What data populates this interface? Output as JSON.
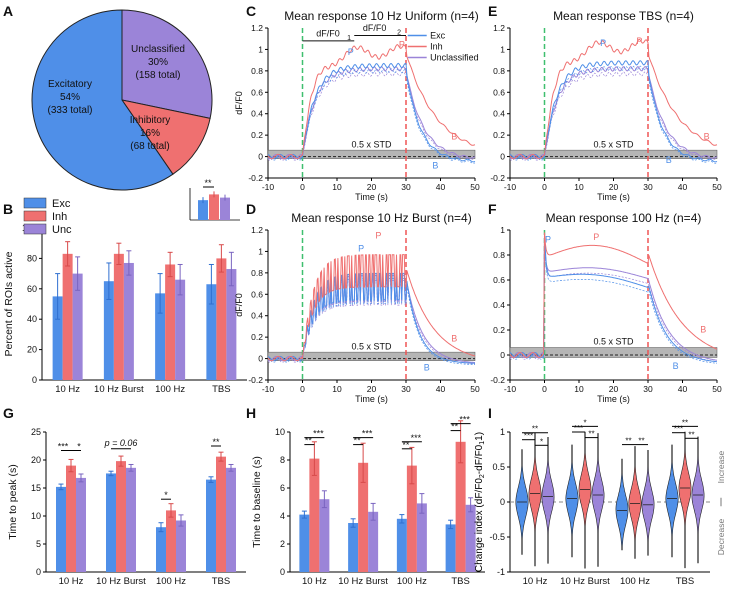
{
  "colors": {
    "exc": "#4f8fe8",
    "inh": "#ef7070",
    "unc": "#9b84d8",
    "exc_dark": "#2f6fd0",
    "inh_dark": "#d84a4a",
    "unc_dark": "#7a64c0",
    "green": "#3fbf6f",
    "red": "#ef5555",
    "grey": "#9a9a9a"
  },
  "legend": [
    "Exc",
    "Inh",
    "Unc"
  ],
  "chart_data": [
    {
      "panel": "A",
      "type": "pie",
      "slices": [
        {
          "name": "Excitatory",
          "pct": "54%",
          "total": "(333 total)",
          "value": 333
        },
        {
          "name": "Unclassified",
          "pct": "30%",
          "total": "(158 total)",
          "value": 158
        },
        {
          "name": "Inhibitory",
          "pct": "16%",
          "total": "(68 total)",
          "value": 68
        }
      ]
    },
    {
      "panel": "B",
      "type": "bar",
      "ylabel": "Percent of ROIs active",
      "ylim": [
        0,
        100
      ],
      "yticks": [
        "0",
        "20",
        "40",
        "60",
        "80",
        "100"
      ],
      "categories": [
        "10 Hz",
        "10 Hz Burst",
        "100 Hz",
        "TBS"
      ],
      "series": [
        {
          "name": "Exc",
          "values": [
            55,
            65,
            57,
            63
          ],
          "err": [
            15,
            12,
            13,
            13
          ]
        },
        {
          "name": "Inh",
          "values": [
            83,
            83,
            76,
            80
          ],
          "err": [
            8,
            7,
            8,
            9
          ]
        },
        {
          "name": "Unc",
          "values": [
            70,
            77,
            66,
            73
          ],
          "err": [
            11,
            8,
            10,
            11
          ]
        }
      ],
      "inset": {
        "values": [
          62,
          80,
          70
        ],
        "sig": "**"
      }
    },
    {
      "panel": "C",
      "type": "line",
      "title": "Mean response 10 Hz Uniform (n=4)",
      "legend": [
        "Exc",
        "Inh",
        "Unclassified"
      ],
      "ylabel": "dF/F0",
      "xlabel": "Time (s)",
      "annotations": [
        "dF/F0",
        "1",
        "dF/F0",
        "2",
        "0.5 x STD"
      ],
      "markers": [
        "P",
        "P",
        "B",
        "B"
      ]
    },
    {
      "panel": "D",
      "type": "line",
      "title": "Mean response 10 Hz Burst (n=4)",
      "ylabel": "dF/F0",
      "xlabel": "Time (s)",
      "annotations": [
        "0.5 x STD"
      ],
      "markers": [
        "P",
        "P",
        "B",
        "B"
      ]
    },
    {
      "panel": "E",
      "type": "line",
      "title": "Mean response TBS (n=4)",
      "xlabel": "Time (s)",
      "annotations": [
        "0.5 x STD"
      ],
      "markers": [
        "P",
        "P",
        "B",
        "B"
      ]
    },
    {
      "panel": "F",
      "type": "line",
      "title": "Mean response 100 Hz (n=4)",
      "xlabel": "Time (s)",
      "annotations": [
        "0.5 x STD"
      ],
      "markers": [
        "P",
        "P",
        "B",
        "B"
      ]
    },
    {
      "panel": "G",
      "type": "bar",
      "ylabel": "Time to peak (s)",
      "ylim": [
        0,
        25
      ],
      "yticks": [
        "0",
        "5",
        "10",
        "15",
        "20",
        "25"
      ],
      "categories": [
        "10 Hz",
        "10 Hz Burst",
        "100 Hz",
        "TBS"
      ],
      "series": [
        {
          "name": "Exc",
          "values": [
            15.2,
            17.6,
            8.0,
            16.5
          ],
          "err": [
            0.5,
            0.4,
            0.8,
            0.5
          ]
        },
        {
          "name": "Inh",
          "values": [
            19.0,
            19.8,
            11.0,
            20.6
          ],
          "err": [
            1.1,
            0.9,
            1.2,
            0.8
          ]
        },
        {
          "name": "Unc",
          "values": [
            16.8,
            18.6,
            9.2,
            18.6
          ],
          "err": [
            0.7,
            0.6,
            1.0,
            0.6
          ]
        }
      ],
      "sig": [
        "***",
        "*",
        "p = 0.06",
        "*",
        "**"
      ]
    },
    {
      "panel": "H",
      "type": "bar",
      "ylabel": "Time to baseline (s)",
      "ylim": [
        0,
        10
      ],
      "yticks": [
        "0",
        "2",
        "4",
        "6",
        "8",
        "10"
      ],
      "categories": [
        "10 Hz",
        "10 Hz Burst",
        "100 Hz",
        "TBS"
      ],
      "series": [
        {
          "name": "Exc",
          "values": [
            4.1,
            3.5,
            3.8,
            3.4
          ],
          "err": [
            0.25,
            0.3,
            0.3,
            0.3
          ]
        },
        {
          "name": "Inh",
          "values": [
            8.1,
            7.8,
            7.6,
            9.3
          ],
          "err": [
            1.2,
            1.4,
            1.3,
            1.5
          ]
        },
        {
          "name": "Unc",
          "values": [
            5.2,
            4.3,
            4.9,
            4.8
          ],
          "err": [
            0.6,
            0.6,
            0.7,
            0.5
          ]
        }
      ],
      "sig": [
        "**",
        "***",
        "**",
        "***",
        "**",
        "***",
        "**",
        "***"
      ]
    },
    {
      "panel": "I",
      "type": "violin",
      "ylabel": "Change index (dF/F0",
      "ylabel_suffix": "2",
      "ylabel_mid": "-dF/F0",
      "ylabel_end": "1)",
      "ylim": [
        -1,
        1
      ],
      "yticks": [
        "-1",
        "-0.5",
        "0",
        "0.5",
        "1"
      ],
      "categories": [
        "10 Hz",
        "10 Hz Burst",
        "100 Hz",
        "TBS"
      ],
      "side_labels": [
        "Decrease",
        "Increase"
      ],
      "sig": [
        "**",
        "***",
        "*",
        "*",
        "***",
        "**",
        "**",
        "**",
        "**",
        "***",
        "**"
      ]
    }
  ],
  "panel_labels": [
    "A",
    "B",
    "C",
    "D",
    "E",
    "F",
    "G",
    "H",
    "I"
  ],
  "axis_ticks": {
    "line_x": [
      "-10",
      "0",
      "10",
      "20",
      "30",
      "40",
      "50"
    ],
    "line_y": [
      "-0.2",
      "0",
      "0.2",
      "0.4",
      "0.6",
      "0.8",
      "1",
      "1.2"
    ],
    "line_y_f": [
      "-0.2",
      "0",
      "0.2",
      "0.4",
      "0.6",
      "0.8",
      "1"
    ]
  }
}
